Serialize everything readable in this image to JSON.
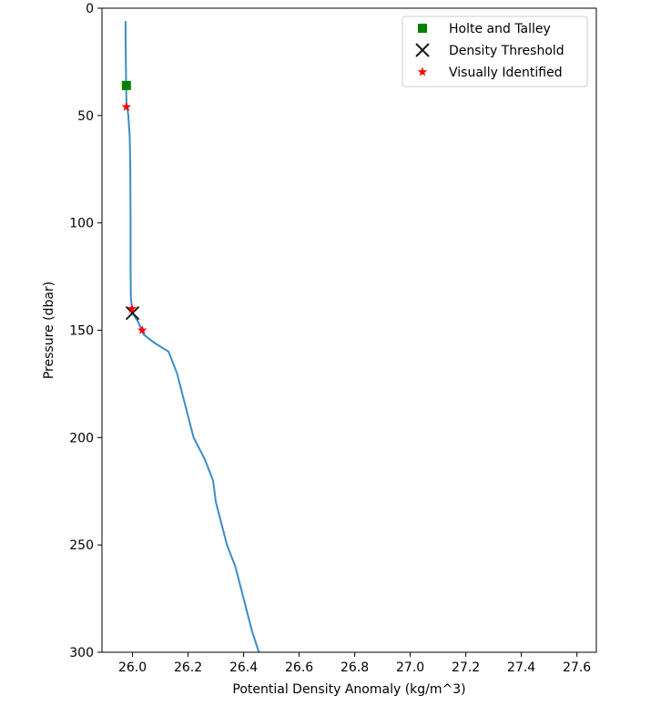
{
  "chart_data": {
    "type": "line",
    "xlabel": "Potential Density Anomaly (kg/m^3)",
    "ylabel": "Pressure (dbar)",
    "xlim": [
      25.89,
      27.67
    ],
    "ylim": [
      300,
      0
    ],
    "y_inverted": true,
    "grid": false,
    "legend_position": "top-right",
    "x_ticks": [
      {
        "value": 26.0,
        "label": "26.0"
      },
      {
        "value": 26.2,
        "label": "26.2"
      },
      {
        "value": 26.4,
        "label": "26.4"
      },
      {
        "value": 26.6,
        "label": "26.6"
      },
      {
        "value": 26.8,
        "label": "26.8"
      },
      {
        "value": 27.0,
        "label": "27.0"
      },
      {
        "value": 27.2,
        "label": "27.2"
      },
      {
        "value": 27.4,
        "label": "27.4"
      },
      {
        "value": 27.6,
        "label": "27.6"
      }
    ],
    "y_ticks": [
      {
        "value": 0,
        "label": "0"
      },
      {
        "value": 50,
        "label": "50"
      },
      {
        "value": 100,
        "label": "100"
      },
      {
        "value": 150,
        "label": "150"
      },
      {
        "value": 200,
        "label": "200"
      },
      {
        "value": 250,
        "label": "250"
      },
      {
        "value": 300,
        "label": "300"
      }
    ],
    "profile": {
      "color": "#3a8dc8",
      "points": [
        [
          25.975,
          6
        ],
        [
          25.975,
          15
        ],
        [
          25.976,
          25
        ],
        [
          25.977,
          35
        ],
        [
          25.978,
          44
        ],
        [
          25.985,
          50
        ],
        [
          25.99,
          60
        ],
        [
          25.992,
          75
        ],
        [
          25.993,
          100
        ],
        [
          25.993,
          120
        ],
        [
          25.994,
          135
        ],
        [
          26.0,
          142
        ],
        [
          26.02,
          146
        ],
        [
          26.04,
          152
        ],
        [
          26.08,
          156
        ],
        [
          26.13,
          160
        ],
        [
          26.16,
          170
        ],
        [
          26.19,
          185
        ],
        [
          26.22,
          200
        ],
        [
          26.26,
          210
        ],
        [
          26.29,
          220
        ],
        [
          26.3,
          230
        ],
        [
          26.32,
          240
        ],
        [
          26.34,
          250
        ],
        [
          26.37,
          260
        ],
        [
          26.39,
          270
        ],
        [
          26.41,
          280
        ],
        [
          26.43,
          290
        ],
        [
          26.46,
          302
        ]
      ]
    },
    "markers": [
      {
        "name": "Holte and Talley",
        "shape": "square",
        "color": "#008000",
        "points": [
          [
            25.978,
            36
          ]
        ]
      },
      {
        "name": "Density Threshold",
        "shape": "x",
        "color": "#1a1a1a",
        "points": [
          [
            26.0,
            142
          ]
        ]
      },
      {
        "name": "Visually Identified",
        "shape": "star",
        "color": "#ff0000",
        "points": [
          [
            25.978,
            46
          ],
          [
            25.998,
            140
          ],
          [
            26.035,
            150
          ]
        ]
      }
    ]
  }
}
